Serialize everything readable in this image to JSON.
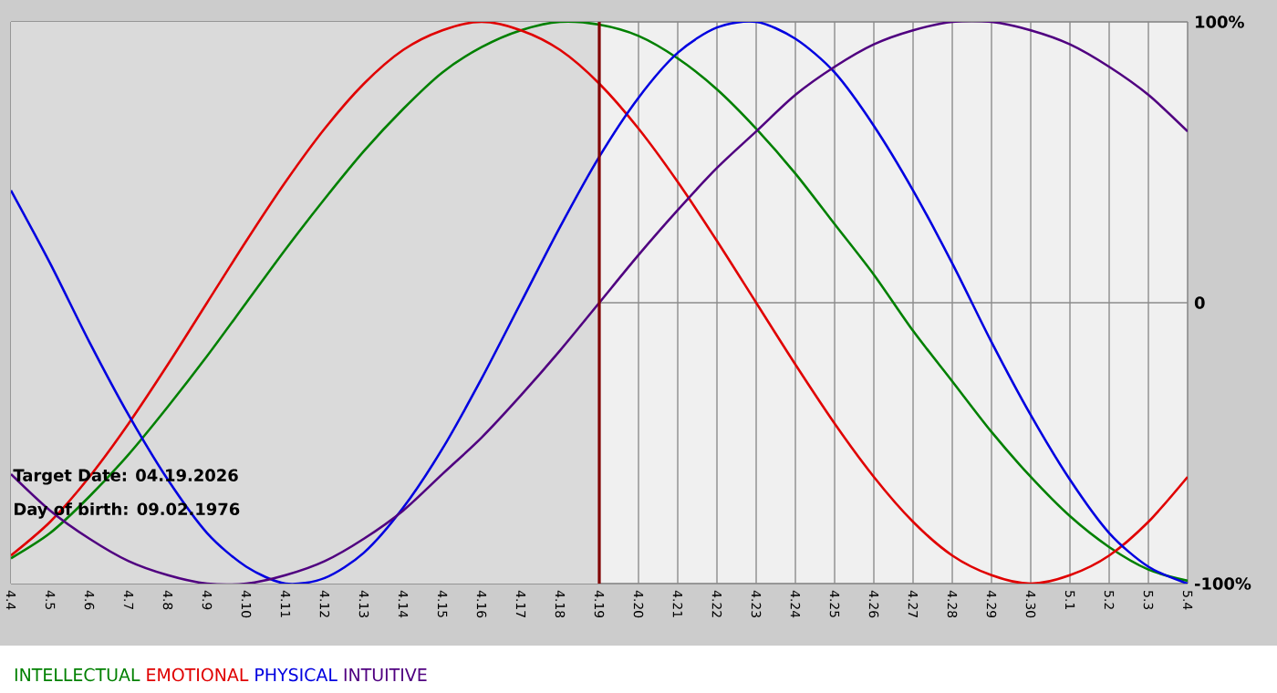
{
  "chart_data": {
    "type": "line",
    "categories": [
      "4.4",
      "4.5",
      "4.6",
      "4.7",
      "4.8",
      "4.9",
      "4.10",
      "4.11",
      "4.12",
      "4.13",
      "4.14",
      "4.15",
      "4.16",
      "4.17",
      "4.18",
      "4.19",
      "4.20",
      "4.21",
      "4.22",
      "4.23",
      "4.24",
      "4.25",
      "4.26",
      "4.27",
      "4.28",
      "4.29",
      "4.30",
      "5.1",
      "5.2",
      "5.3",
      "5.4"
    ],
    "series": [
      {
        "name": "INTELLECTUAL",
        "color": "#008000",
        "values": [
          -91,
          -82,
          -69,
          -54,
          -37,
          -19,
          0,
          19,
          37,
          54,
          69,
          82,
          91,
          97,
          100,
          99,
          95,
          87,
          76,
          62,
          46,
          28,
          10,
          -10,
          -28,
          -46,
          -62,
          -76,
          -87,
          -95,
          -99
        ]
      },
      {
        "name": "EMOTIONAL",
        "color": "#e00000",
        "values": [
          -90,
          -78,
          -62,
          -43,
          -22,
          0,
          22,
          43,
          62,
          78,
          90,
          97,
          100,
          97,
          90,
          78,
          62,
          43,
          22,
          0,
          -22,
          -43,
          -62,
          -78,
          -90,
          -97,
          -100,
          -97,
          -90,
          -78,
          -62
        ]
      },
      {
        "name": "PHYSICAL",
        "color": "#0000e0",
        "values": [
          40,
          14,
          -14,
          -40,
          -63,
          -82,
          -94,
          -100,
          -98,
          -89,
          -73,
          -52,
          -27,
          0,
          27,
          52,
          73,
          89,
          98,
          100,
          94,
          82,
          63,
          40,
          14,
          -14,
          -40,
          -63,
          -82,
          -94,
          -100
        ]
      },
      {
        "name": "INTUITIVE",
        "color": "#500080",
        "values": [
          -61,
          -74,
          -84,
          -92,
          -97,
          -100,
          -100,
          -97,
          -92,
          -84,
          -74,
          -61,
          -48,
          -33,
          -17,
          0,
          17,
          33,
          48,
          61,
          74,
          84,
          92,
          97,
          100,
          100,
          97,
          92,
          84,
          74,
          61
        ]
      }
    ],
    "ylim": [
      -100,
      100
    ],
    "yticks": [
      {
        "value": 100,
        "label": "100%"
      },
      0,
      {
        "value": -100,
        "label": "-100%"
      }
    ],
    "grid": true,
    "legend": "bottom",
    "ref_lines": [
      {
        "axis": "x",
        "value": "4.19",
        "color": "#800000"
      }
    ],
    "bands": [
      {
        "axis": "x",
        "from": "4.4",
        "to": "4.19",
        "color": "#dadada"
      }
    ],
    "annotations": [
      "Target Date: 04.19.2026",
      "Day of birth: 09.02.1976"
    ]
  }
}
